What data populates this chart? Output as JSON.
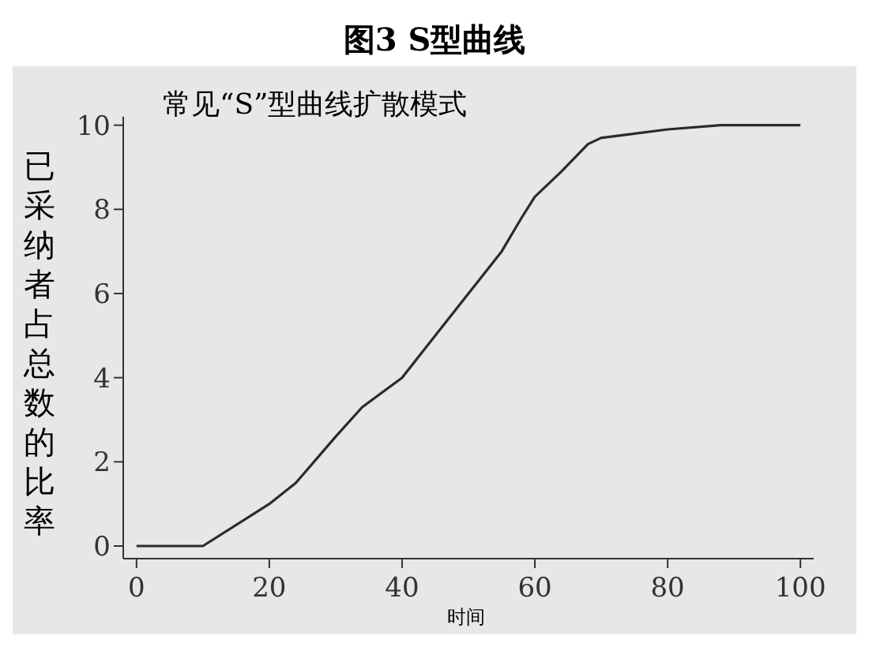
{
  "chart_data": {
    "type": "line",
    "title": "图3 S型曲线",
    "xlabel": "时间",
    "ylabel": "已采纳者占总数的比率",
    "annotations": [
      "常见“S”型曲线扩散模式"
    ],
    "x": [
      0,
      10,
      18,
      20,
      24,
      30,
      34,
      40,
      45,
      50,
      55,
      58,
      60,
      64,
      68,
      70,
      75,
      80,
      88,
      100
    ],
    "series": [
      {
        "color": "#2b2b2b",
        "values": [
          0,
          0,
          0.8,
          1,
          1.5,
          2.6,
          3.3,
          4,
          5,
          6,
          7,
          7.8,
          8.3,
          8.9,
          9.55,
          9.7,
          9.8,
          9.9,
          10,
          10
        ]
      }
    ],
    "xlim": [
      -2,
      102
    ],
    "ylim": [
      -0.3,
      10.2
    ],
    "xticks": [
      0,
      20,
      40,
      60,
      80,
      100
    ],
    "yticks": [
      0,
      2,
      4,
      6,
      8,
      10
    ],
    "grid": false,
    "legend": false,
    "marker": "none",
    "line_style": "solid"
  }
}
